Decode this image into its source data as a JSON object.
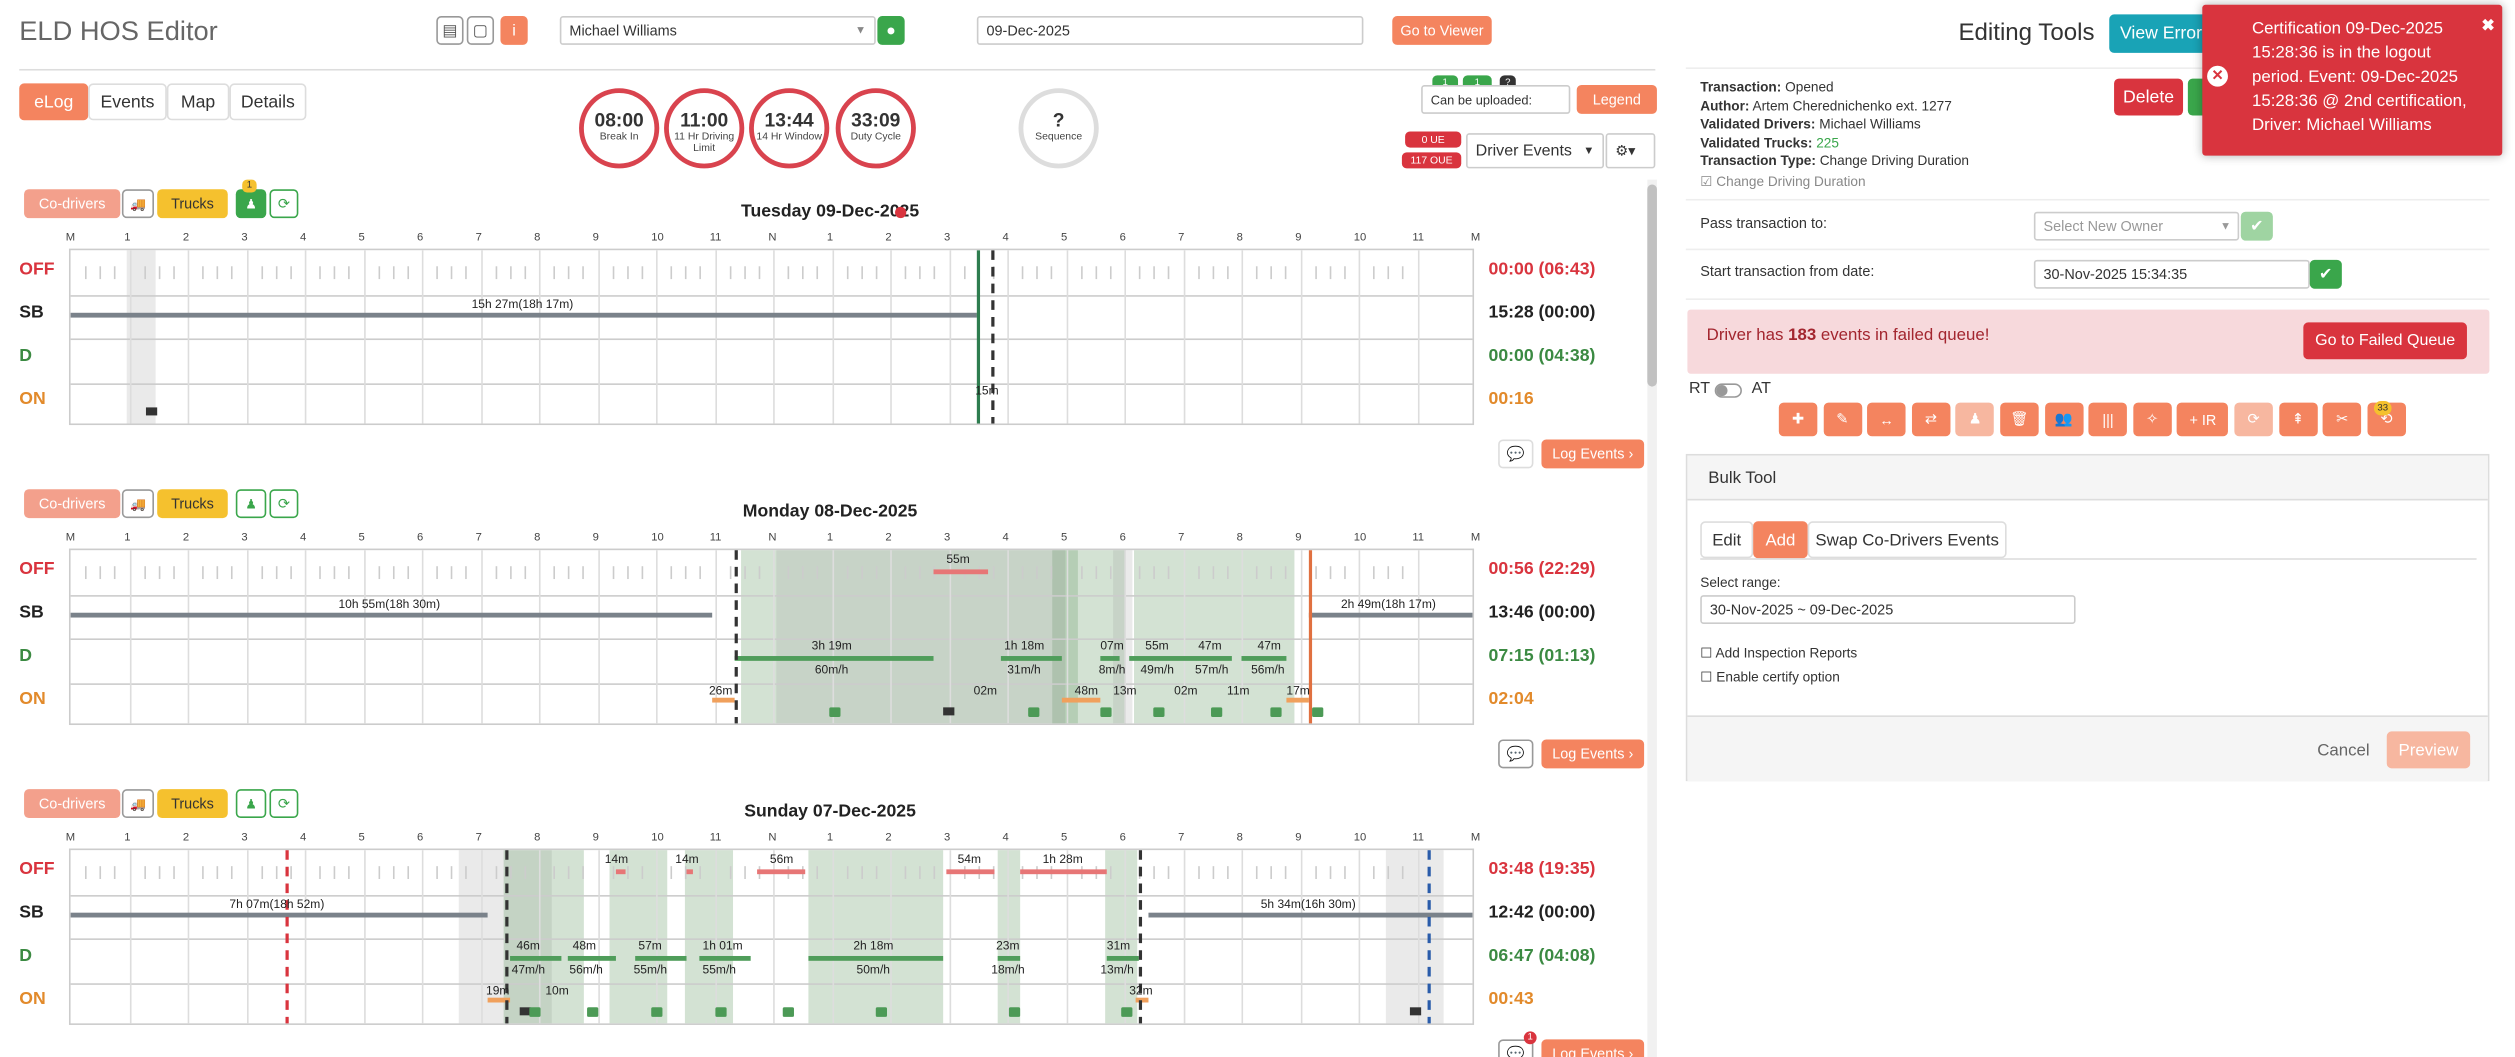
{
  "app_title": "ELD HOS Editor",
  "driver_select": "Michael Williams",
  "date_field": "09-Dec-2025",
  "go_to_viewer": "Go to Viewer",
  "tabs": [
    "eLog",
    "Events",
    "Map",
    "Details"
  ],
  "circles": [
    {
      "value": "08:00",
      "label": "Break In"
    },
    {
      "value": "11:00",
      "label": "11 Hr Driving Limit"
    },
    {
      "value": "13:44",
      "label": "14 Hr Window"
    },
    {
      "value": "33:09",
      "label": "Duty Cycle"
    },
    {
      "value": "?",
      "label": "Sequence"
    }
  ],
  "upload": {
    "select": "Can be uploaded:",
    "legend": "Legend",
    "b1": "1",
    "b2": "1",
    "q": "?"
  },
  "badges": {
    "ue": "0 UE",
    "oue": "117 OUE"
  },
  "driver_events": "Driver Events",
  "co_drivers": "Co-drivers",
  "trucks": "Trucks",
  "log_events": "Log Events",
  "hours": [
    "M",
    "1",
    "2",
    "3",
    "4",
    "5",
    "6",
    "7",
    "8",
    "9",
    "10",
    "11",
    "N",
    "1",
    "2",
    "3",
    "4",
    "5",
    "6",
    "7",
    "8",
    "9",
    "10",
    "11",
    "M"
  ],
  "row_labels": [
    "OFF",
    "SB",
    "D",
    "ON"
  ],
  "days": [
    {
      "title": "Tuesday 09-Dec-2025",
      "totals": [
        "00:00 (06:43)",
        "15:28 (00:00)",
        "00:00 (04:38)",
        "00:16"
      ],
      "labels": [
        {
          "t": "15h 27m(18h 17m)",
          "x": 250,
          "y": 29
        },
        {
          "t": "15m",
          "x": 564,
          "y": 83
        }
      ]
    },
    {
      "title": "Monday 08-Dec-2025",
      "totals": [
        "00:56 (22:29)",
        "13:46 (00:00)",
        "07:15 (01:13)",
        "02:04"
      ],
      "labels": [
        {
          "t": "10h 55m(18h 30m)",
          "x": 167,
          "y": 29
        },
        {
          "t": "55m",
          "x": 546,
          "y": 1
        },
        {
          "t": "3h 19m",
          "x": 462,
          "y": 55
        },
        {
          "t": "60m/h",
          "x": 464,
          "y": 70
        },
        {
          "t": "1h 18m",
          "x": 582,
          "y": 55
        },
        {
          "t": "31m/h",
          "x": 584,
          "y": 70
        },
        {
          "t": "07m",
          "x": 642,
          "y": 55
        },
        {
          "t": "55m",
          "x": 670,
          "y": 55
        },
        {
          "t": "47m",
          "x": 703,
          "y": 55
        },
        {
          "t": "47m",
          "x": 740,
          "y": 55
        },
        {
          "t": "8m/h",
          "x": 641,
          "y": 70
        },
        {
          "t": "49m/h",
          "x": 667,
          "y": 70
        },
        {
          "t": "57m/h",
          "x": 701,
          "y": 70
        },
        {
          "t": "56m/h",
          "x": 736,
          "y": 70
        },
        {
          "t": "26m",
          "x": 398,
          "y": 83
        },
        {
          "t": "02m",
          "x": 563,
          "y": 83
        },
        {
          "t": "48m",
          "x": 626,
          "y": 83
        },
        {
          "t": "13m",
          "x": 650,
          "y": 83
        },
        {
          "t": "02m",
          "x": 688,
          "y": 83
        },
        {
          "t": "11m",
          "x": 721,
          "y": 83
        },
        {
          "t": "17m",
          "x": 758,
          "y": 83
        },
        {
          "t": "2h 49m(18h 17m)",
          "x": 792,
          "y": 29
        }
      ]
    },
    {
      "title": "Sunday 07-Dec-2025",
      "totals": [
        "03:48 (19:35)",
        "12:42 (00:00)",
        "06:47 (04:08)",
        "00:43"
      ],
      "labels": [
        {
          "t": "7h 07m(18h 52m)",
          "x": 99,
          "y": 29
        },
        {
          "t": "14m",
          "x": 333,
          "y": 1
        },
        {
          "t": "14m",
          "x": 377,
          "y": 1
        },
        {
          "t": "56m",
          "x": 436,
          "y": 1
        },
        {
          "t": "54m",
          "x": 553,
          "y": 1
        },
        {
          "t": "1h 28m",
          "x": 606,
          "y": 1
        },
        {
          "t": "46m",
          "x": 278,
          "y": 55
        },
        {
          "t": "48m",
          "x": 313,
          "y": 55
        },
        {
          "t": "57m",
          "x": 354,
          "y": 55
        },
        {
          "t": "1h 01m",
          "x": 394,
          "y": 55
        },
        {
          "t": "2h 18m",
          "x": 488,
          "y": 55
        },
        {
          "t": "23m",
          "x": 577,
          "y": 55
        },
        {
          "t": "31m",
          "x": 646,
          "y": 55
        },
        {
          "t": "47m/h",
          "x": 275,
          "y": 70
        },
        {
          "t": "56m/h",
          "x": 311,
          "y": 70
        },
        {
          "t": "55m/h",
          "x": 351,
          "y": 70
        },
        {
          "t": "55m/h",
          "x": 394,
          "y": 70
        },
        {
          "t": "50m/h",
          "x": 490,
          "y": 70
        },
        {
          "t": "18m/h",
          "x": 574,
          "y": 70
        },
        {
          "t": "13m/h",
          "x": 642,
          "y": 70
        },
        {
          "t": "19m",
          "x": 259,
          "y": 83
        },
        {
          "t": "10m",
          "x": 296,
          "y": 83
        },
        {
          "t": "32m",
          "x": 660,
          "y": 83
        },
        {
          "t": "5h 34m(16h 30m)",
          "x": 742,
          "y": 29
        }
      ]
    }
  ],
  "editing_tools": "Editing Tools",
  "view_errors": "View Errors",
  "delete": "Delete",
  "transaction": {
    "lines": [
      {
        "k": "Transaction:",
        "v": "Opened"
      },
      {
        "k": "Author:",
        "v": "Artem Cherednichenko ext. 1277"
      },
      {
        "k": "Validated Drivers:",
        "v": "Michael Williams"
      },
      {
        "k": "Validated Trucks:",
        "v": "225"
      },
      {
        "k": "Transaction Type:",
        "v": "Change Driving Duration"
      }
    ],
    "check": "Change Driving Duration",
    "pass_to": "Pass transaction to:",
    "select_owner": "Select New Owner",
    "start_from": "Start transaction from date:",
    "start_value": "30-Nov-2025 15:34:35"
  },
  "failed": {
    "pre": "Driver has ",
    "count": "183",
    "post": " events in failed queue!",
    "btn": "Go to Failed Queue"
  },
  "rt": "RT",
  "at": "AT",
  "tool_badge": "33",
  "tool_ir": "+ IR",
  "bulk": {
    "title": "Bulk Tool",
    "tabs": [
      "Edit",
      "Add",
      "Swap Co-Drivers Events"
    ],
    "range_label": "Select range:",
    "range": "30-Nov-2025 ~ 09-Dec-2025",
    "opt1": "Add Inspection Reports",
    "opt2": "Enable certify option",
    "cancel": "Cancel",
    "preview": "Preview"
  },
  "toast": "Certification 09-Dec-2025 15:28:36 is in the logout period. Event: 09-Dec-2025 15:28:36 @ 2nd certification, Driver: Michael Williams",
  "comment_badge": "1",
  "truck_badge": "1"
}
